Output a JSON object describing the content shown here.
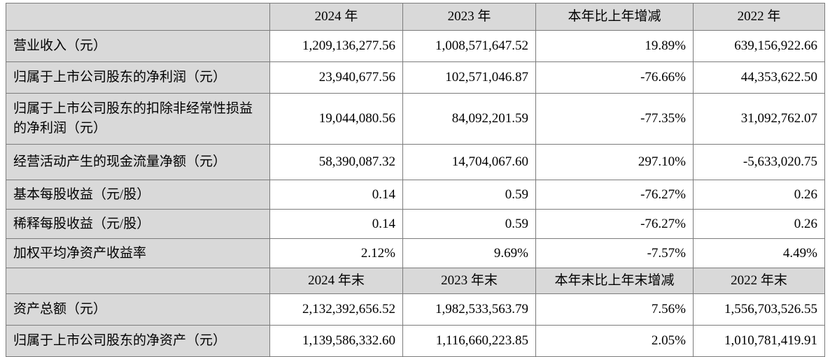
{
  "table": {
    "colors": {
      "header_bg": "#d9d9d9",
      "label_bg": "#d9d9d9",
      "cell_bg": "#ffffff",
      "border": "#7b7b7b"
    },
    "header_annual": {
      "label": "",
      "cols": [
        "2024 年",
        "2023 年",
        "本年比上年增减",
        "2022 年"
      ]
    },
    "header_year_end": {
      "label": "",
      "cols": [
        "2024 年末",
        "2023 年末",
        "本年末比上年末增减",
        "2022 年末"
      ]
    },
    "annual_rows": [
      {
        "label": "营业收入（元）",
        "values": [
          "1,209,136,277.56",
          "1,008,571,647.52",
          "19.89%",
          "639,156,922.66"
        ]
      },
      {
        "label": "归属于上市公司股东的净利润（元）",
        "values": [
          "23,940,677.56",
          "102,571,046.87",
          "-76.66%",
          "44,353,622.50"
        ]
      },
      {
        "label": "归属于上市公司股东的扣除非经常性损益的净利润（元）",
        "values": [
          "19,044,080.56",
          "84,092,201.59",
          "-77.35%",
          "31,092,762.07"
        ]
      },
      {
        "label": "经营活动产生的现金流量净额（元）",
        "values": [
          "58,390,087.32",
          "14,704,067.60",
          "297.10%",
          "-5,633,020.75"
        ]
      },
      {
        "label": "基本每股收益（元/股）",
        "values": [
          "0.14",
          "0.59",
          "-76.27%",
          "0.26"
        ]
      },
      {
        "label": "稀释每股收益（元/股）",
        "values": [
          "0.14",
          "0.59",
          "-76.27%",
          "0.26"
        ]
      },
      {
        "label": "加权平均净资产收益率",
        "values": [
          "2.12%",
          "9.69%",
          "-7.57%",
          "4.49%"
        ]
      }
    ],
    "year_end_rows": [
      {
        "label": "资产总额（元）",
        "values": [
          "2,132,392,656.52",
          "1,982,533,563.79",
          "7.56%",
          "1,556,703,526.55"
        ]
      },
      {
        "label": "归属于上市公司股东的净资产（元）",
        "values": [
          "1,139,586,332.60",
          "1,116,660,223.85",
          "2.05%",
          "1,010,781,419.91"
        ]
      }
    ]
  }
}
